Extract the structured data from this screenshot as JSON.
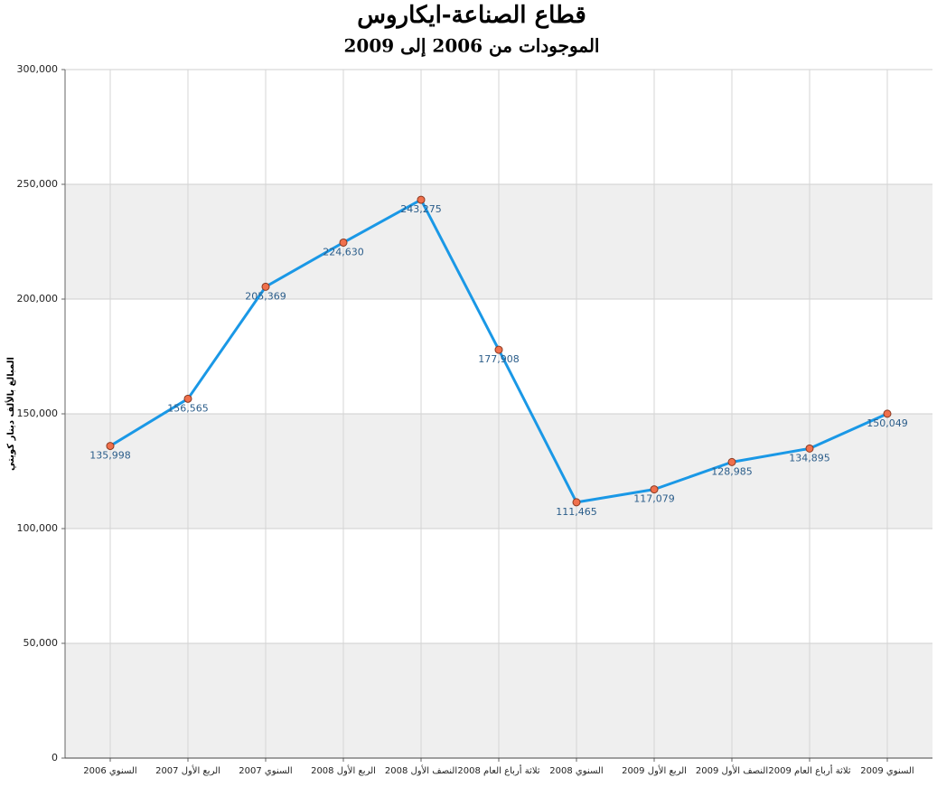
{
  "chart_data": {
    "type": "line",
    "title": "قطاع الصناعة-ايكاروس",
    "subtitle": "الموجودات من 2006 إلى 2009",
    "y_label": "المبالغ بالألف دينار كويتي",
    "categories": [
      "السنوي 2006",
      "الربع الأول 2007",
      "السنوي 2007",
      "الربع الأول 2008",
      "النصف الأول 2008",
      "ثلاثة أرباع العام 2008",
      "السنوي 2008",
      "الربع الأول 2009",
      "النصف الأول 2009",
      "ثلاثة أرباع العام 2009",
      "السنوي 2009"
    ],
    "values": [
      135998,
      156565,
      205369,
      224630,
      243275,
      177908,
      111465,
      117079,
      128985,
      134895,
      150049
    ],
    "value_labels": [
      "135,998",
      "156,565",
      "205,369",
      "224,630",
      "243,275",
      "177,908",
      "111,465",
      "117,079",
      "128,985",
      "134,895",
      "150,049"
    ],
    "color": "#1a98e6",
    "marker_color": "#f0704c",
    "ylim": [
      0,
      300000
    ],
    "yticks": [
      0,
      {
        "value": 50000,
        "label": "50,000"
      },
      {
        "value": 100000,
        "label": "100,000"
      },
      {
        "value": 150000,
        "label": "150,000"
      },
      {
        "value": 200000,
        "label": "200,000"
      },
      {
        "value": 250000,
        "label": "250,000"
      },
      {
        "value": 300000,
        "label": "300,000"
      }
    ],
    "grid": true,
    "alternate_bands": true,
    "band_color": "#efefef"
  }
}
